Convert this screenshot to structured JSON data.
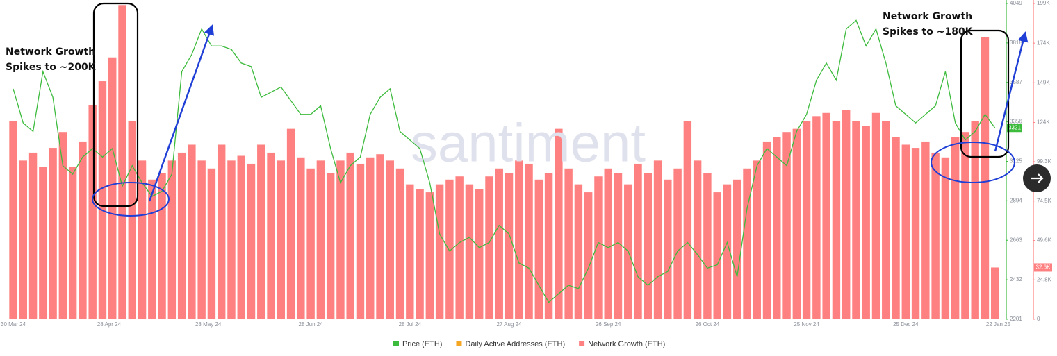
{
  "chart_data": {
    "type": "bar-line",
    "watermark": "santiment",
    "annotations": [
      [
        "Network Growth",
        "Spikes to ~200K"
      ],
      [
        "Network Growth",
        "Spikes to ~180K"
      ]
    ],
    "x": [
      "2024-03-30",
      "2024-04-02",
      "2024-04-05",
      "2024-04-08",
      "2024-04-11",
      "2024-04-14",
      "2024-04-17",
      "2024-04-20",
      "2024-04-23",
      "2024-04-26",
      "2024-04-29",
      "2024-05-02",
      "2024-05-05",
      "2024-05-08",
      "2024-05-11",
      "2024-05-14",
      "2024-05-17",
      "2024-05-20",
      "2024-05-23",
      "2024-05-26",
      "2024-05-29",
      "2024-06-01",
      "2024-06-04",
      "2024-06-07",
      "2024-06-10",
      "2024-06-13",
      "2024-06-16",
      "2024-06-19",
      "2024-06-22",
      "2024-06-25",
      "2024-06-28",
      "2024-07-01",
      "2024-07-04",
      "2024-07-07",
      "2024-07-10",
      "2024-07-13",
      "2024-07-16",
      "2024-07-19",
      "2024-07-22",
      "2024-07-25",
      "2024-07-28",
      "2024-07-31",
      "2024-08-03",
      "2024-08-06",
      "2024-08-09",
      "2024-08-12",
      "2024-08-15",
      "2024-08-18",
      "2024-08-21",
      "2024-08-24",
      "2024-08-27",
      "2024-08-30",
      "2024-09-02",
      "2024-09-05",
      "2024-09-08",
      "2024-09-11",
      "2024-09-14",
      "2024-09-17",
      "2024-09-20",
      "2024-09-23",
      "2024-09-26",
      "2024-09-29",
      "2024-10-02",
      "2024-10-05",
      "2024-10-08",
      "2024-10-11",
      "2024-10-14",
      "2024-10-17",
      "2024-10-20",
      "2024-10-23",
      "2024-10-26",
      "2024-10-29",
      "2024-11-01",
      "2024-11-04",
      "2024-11-07",
      "2024-11-10",
      "2024-11-13",
      "2024-11-16",
      "2024-11-19",
      "2024-11-22",
      "2024-11-25",
      "2024-11-28",
      "2024-12-01",
      "2024-12-04",
      "2024-12-07",
      "2024-12-10",
      "2024-12-13",
      "2024-12-16",
      "2024-12-19",
      "2024-12-22",
      "2024-12-25",
      "2024-12-28",
      "2024-12-31",
      "2025-01-03",
      "2025-01-06",
      "2025-01-09",
      "2025-01-12",
      "2025-01-15",
      "2025-01-18",
      "2025-01-21"
    ],
    "xlim": [
      "2024-03-26",
      "2025-01-24"
    ],
    "xticks": [
      {
        "value": "2024-03-30",
        "label": "30 Mar 24"
      },
      {
        "value": "2024-04-28",
        "label": "28 Apr 24"
      },
      {
        "value": "2024-05-28",
        "label": "28 May 24"
      },
      {
        "value": "2024-06-28",
        "label": "28 Jun 24"
      },
      {
        "value": "2024-07-28",
        "label": "28 Jul 24"
      },
      {
        "value": "2024-08-27",
        "label": "27 Aug 24"
      },
      {
        "value": "2024-09-26",
        "label": "26 Sep 24"
      },
      {
        "value": "2024-10-26",
        "label": "26 Oct 24"
      },
      {
        "value": "2024-11-25",
        "label": "25 Nov 24"
      },
      {
        "value": "2024-12-25",
        "label": "25 Dec 24"
      },
      {
        "value": "2025-01-22",
        "label": "22 Jan 25"
      }
    ],
    "ylim": [
      0,
      199000
    ],
    "yticks": [
      0,
      {
        "value": 24800,
        "label": "24.8K"
      },
      {
        "value": 49600,
        "label": "49.6K"
      },
      {
        "value": 74500,
        "label": "74.5K"
      },
      {
        "value": 99300,
        "label": "99.3K"
      },
      {
        "value": 124000,
        "label": "124K"
      },
      {
        "value": 149000,
        "label": "149K"
      },
      {
        "value": 174000,
        "label": "174K"
      },
      {
        "value": 199000,
        "label": "199K"
      }
    ],
    "y2lim": [
      2201,
      4049
    ],
    "y2ticks": [
      2201,
      2432,
      2663,
      2894,
      3125,
      3356,
      3587,
      3818,
      4049
    ],
    "series": [
      {
        "name": "Price (ETH)",
        "color": "#3dbb3d",
        "axis": "y2",
        "type": "line",
        "values": [
          3550,
          3350,
          3300,
          3650,
          3500,
          3100,
          3050,
          3150,
          3200,
          3150,
          3200,
          2980,
          3100,
          3000,
          2920,
          2950,
          3050,
          3650,
          3750,
          3900,
          3800,
          3800,
          3780,
          3700,
          3680,
          3500,
          3530,
          3560,
          3480,
          3400,
          3400,
          3450,
          3200,
          3000,
          3100,
          3150,
          3400,
          3500,
          3550,
          3300,
          3250,
          3200,
          3000,
          2700,
          2600,
          2650,
          2680,
          2620,
          2650,
          2750,
          2700,
          2530,
          2500,
          2400,
          2300,
          2350,
          2400,
          2380,
          2500,
          2650,
          2620,
          2650,
          2600,
          2450,
          2400,
          2450,
          2480,
          2600,
          2650,
          2580,
          2500,
          2520,
          2650,
          2450,
          2850,
          3100,
          3200,
          3150,
          3100,
          3300,
          3400,
          3600,
          3700,
          3600,
          3900,
          3950,
          3800,
          3900,
          3700,
          3450,
          3400,
          3350,
          3400,
          3450,
          3650,
          3350,
          3250,
          3300,
          3400,
          3321
        ]
      },
      {
        "name": "Daily Active Addresses (ETH)",
        "color": "#f5a623"
      },
      {
        "name": "Network Growth (ETH)",
        "color": "#ff8080",
        "type": "bar",
        "values": [
          125000,
          100000,
          105000,
          96000,
          108000,
          118000,
          96000,
          112000,
          135000,
          150000,
          165000,
          198000,
          125000,
          100000,
          88000,
          92000,
          100000,
          105000,
          110000,
          100000,
          95000,
          110000,
          100000,
          103000,
          98000,
          110000,
          105000,
          100000,
          120000,
          102000,
          95000,
          100000,
          92000,
          100000,
          105000,
          98000,
          102000,
          104000,
          100000,
          95000,
          85000,
          82000,
          80000,
          85000,
          88000,
          90000,
          85000,
          82000,
          90000,
          95000,
          92000,
          100000,
          98000,
          88000,
          92000,
          120000,
          95000,
          85000,
          80000,
          90000,
          95000,
          92000,
          85000,
          98000,
          92000,
          100000,
          88000,
          95000,
          125000,
          100000,
          92000,
          80000,
          85000,
          88000,
          95000,
          100000,
          112000,
          115000,
          118000,
          120000,
          125000,
          128000,
          130000,
          125000,
          132000,
          125000,
          122000,
          130000,
          125000,
          115000,
          110000,
          108000,
          112000,
          105000,
          102000,
          115000,
          118000,
          125000,
          178000,
          32600
        ],
        "value_labels": [
          null,
          null,
          null,
          null,
          null,
          null,
          null,
          null,
          null,
          null,
          null,
          null,
          null,
          null,
          null,
          null,
          null,
          null,
          null,
          null,
          null,
          null,
          null,
          null,
          null,
          null,
          null,
          null,
          null,
          null,
          null,
          null,
          null,
          null,
          null,
          null,
          null,
          null,
          null,
          null,
          null,
          null,
          null,
          null,
          null,
          null,
          null,
          null,
          null,
          null,
          null,
          null,
          null,
          null,
          null,
          null,
          null,
          null,
          null,
          null,
          null,
          null,
          null,
          null,
          null,
          null,
          null,
          null,
          null,
          null,
          null,
          null,
          null,
          null,
          null,
          null,
          null,
          null,
          null,
          null,
          null,
          null,
          null,
          null,
          null,
          null,
          null,
          null,
          null,
          null,
          null,
          null,
          null,
          null,
          null,
          null,
          null,
          null,
          null,
          "32.6K"
        ]
      }
    ]
  }
}
